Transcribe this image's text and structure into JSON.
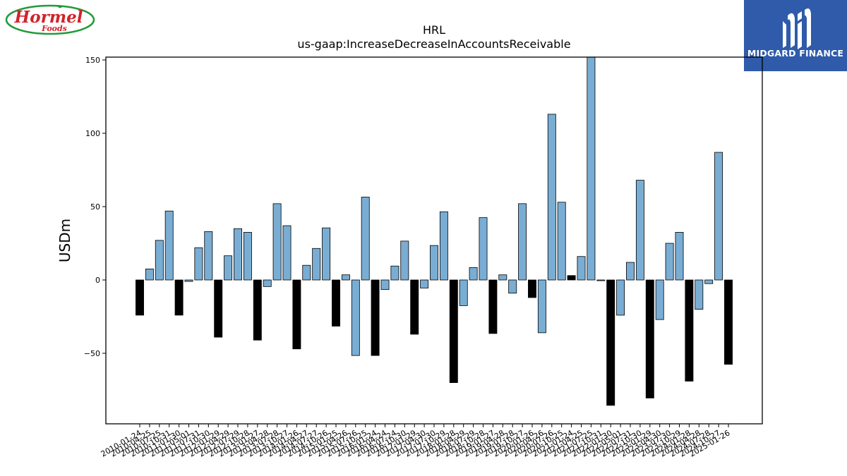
{
  "logos": {
    "left_brand": "Hormel Foods",
    "right_brand": "MIDGARD FINANCE"
  },
  "chart_data": {
    "type": "bar",
    "title": "HRL",
    "subtitle": "us-gaap:IncreaseDecreaseInAccountsReceivable",
    "xlabel": "",
    "ylabel": "USDm",
    "ylim": [
      -98,
      152
    ],
    "yticks": [
      -50,
      0,
      50,
      100,
      150
    ],
    "grid": false,
    "colors": {
      "quarterly": "#7aadd3",
      "annual": "#000000",
      "edge": "#000000"
    },
    "categories": [
      "2010-01-24",
      "2010-04-25",
      "2010-07-25",
      "2010-10-31",
      "2011-01-30",
      "2011-05-01",
      "2011-07-31",
      "2011-10-30",
      "2012-01-29",
      "2012-04-29",
      "2012-07-29",
      "2012-10-28",
      "2013-01-27",
      "2013-04-28",
      "2013-07-28",
      "2013-10-27",
      "2014-01-26",
      "2014-04-27",
      "2014-07-27",
      "2014-10-26",
      "2015-01-25",
      "2015-04-26",
      "2015-07-26",
      "2015-10-25",
      "2016-01-24",
      "2016-04-24",
      "2016-07-24",
      "2016-10-30",
      "2017-01-29",
      "2017-04-30",
      "2017-07-30",
      "2017-10-29",
      "2018-01-28",
      "2018-04-29",
      "2018-07-29",
      "2018-10-28",
      "2019-01-27",
      "2019-04-28",
      "2019-07-28",
      "2019-10-27",
      "2020-01-26",
      "2020-04-26",
      "2020-07-26",
      "2020-10-25",
      "2021-01-24",
      "2021-04-25",
      "2021-07-25",
      "2021-10-31",
      "2022-01-30",
      "2022-05-01",
      "2022-07-31",
      "2022-10-30",
      "2023-01-29",
      "2023-04-30",
      "2023-07-30",
      "2023-10-29",
      "2024-01-28",
      "2024-04-28",
      "2024-07-28",
      "2024-10-27",
      "2025-01-26"
    ],
    "values": [
      -24,
      7.5,
      27,
      47,
      -24,
      -1,
      22,
      33,
      -39,
      16.5,
      35,
      32.5,
      -41,
      -4.5,
      52,
      37,
      -47,
      10,
      21.5,
      35.5,
      -31.5,
      3.5,
      -51.5,
      56.5,
      -51.5,
      -6.5,
      9.5,
      26.5,
      -37,
      -5.5,
      23.5,
      46.5,
      -70,
      -17.5,
      8.5,
      42.5,
      -36.5,
      3.5,
      -9,
      52,
      -12,
      -36,
      113,
      53,
      3,
      16,
      152,
      -0.5,
      -85.5,
      -24,
      12,
      68,
      -80.5,
      -27,
      25,
      32.5,
      -69,
      -20,
      -2.5,
      87,
      -57.5
    ],
    "series_kind": [
      "annual",
      "quarterly",
      "quarterly",
      "quarterly",
      "annual",
      "quarterly",
      "quarterly",
      "quarterly",
      "annual",
      "quarterly",
      "quarterly",
      "quarterly",
      "annual",
      "quarterly",
      "quarterly",
      "quarterly",
      "annual",
      "quarterly",
      "quarterly",
      "quarterly",
      "annual",
      "quarterly",
      "quarterly",
      "quarterly",
      "annual",
      "quarterly",
      "quarterly",
      "quarterly",
      "annual",
      "quarterly",
      "quarterly",
      "quarterly",
      "annual",
      "quarterly",
      "quarterly",
      "quarterly",
      "annual",
      "quarterly",
      "quarterly",
      "quarterly",
      "annual",
      "quarterly",
      "quarterly",
      "quarterly",
      "annual",
      "quarterly",
      "quarterly",
      "quarterly",
      "annual",
      "quarterly",
      "quarterly",
      "quarterly",
      "annual",
      "quarterly",
      "quarterly",
      "quarterly",
      "annual",
      "quarterly",
      "quarterly",
      "quarterly",
      "annual"
    ]
  }
}
